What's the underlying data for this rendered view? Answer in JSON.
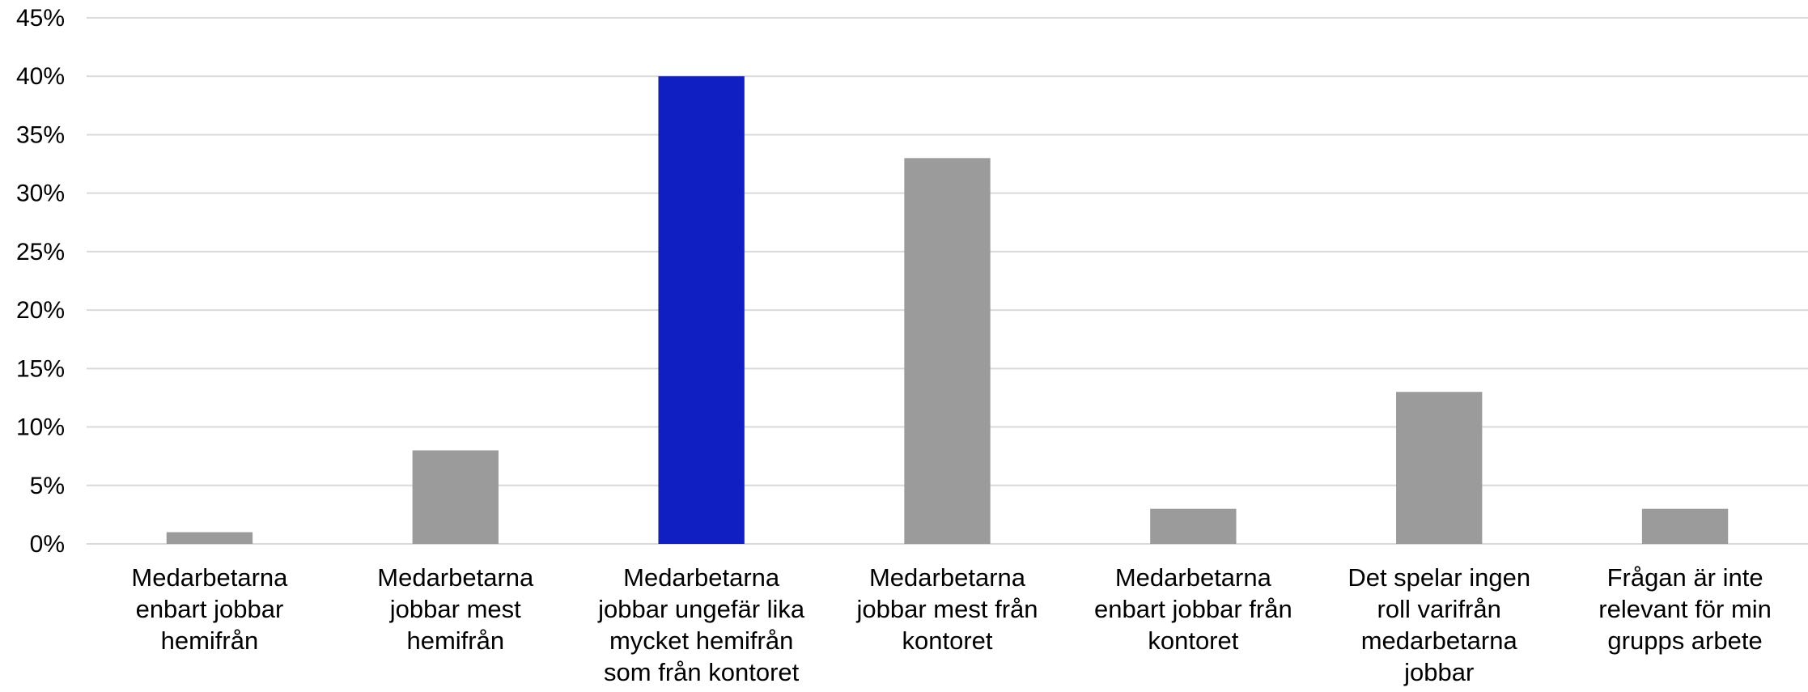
{
  "chart_data": {
    "type": "bar",
    "categories": [
      [
        "Medarbetarna",
        "enbart jobbar",
        "hemifrån"
      ],
      [
        "Medarbetarna",
        "jobbar mest",
        "hemifrån"
      ],
      [
        "Medarbetarna",
        "jobbar ungefär lika",
        "mycket hemifrån",
        "som från kontoret"
      ],
      [
        "Medarbetarna",
        "jobbar mest från",
        "kontoret"
      ],
      [
        "Medarbetarna",
        "enbart jobbar från",
        "kontoret"
      ],
      [
        "Det spelar ingen",
        "roll varifrån",
        "medarbetarna",
        "jobbar"
      ],
      [
        "Frågan är inte",
        "relevant för min",
        "grupps arbete"
      ]
    ],
    "values": [
      1,
      8,
      40,
      33,
      3,
      13,
      3
    ],
    "highlight_index": 2,
    "ylim": [
      0,
      45
    ],
    "ytick_step": 5,
    "ytick_format": "%",
    "grid": true,
    "legend": "none",
    "colors": {
      "bar": "#9b9b9b",
      "highlight": "#0f1fc2",
      "grid": "#d9d9d9",
      "axis": "#d9d9d9"
    }
  }
}
